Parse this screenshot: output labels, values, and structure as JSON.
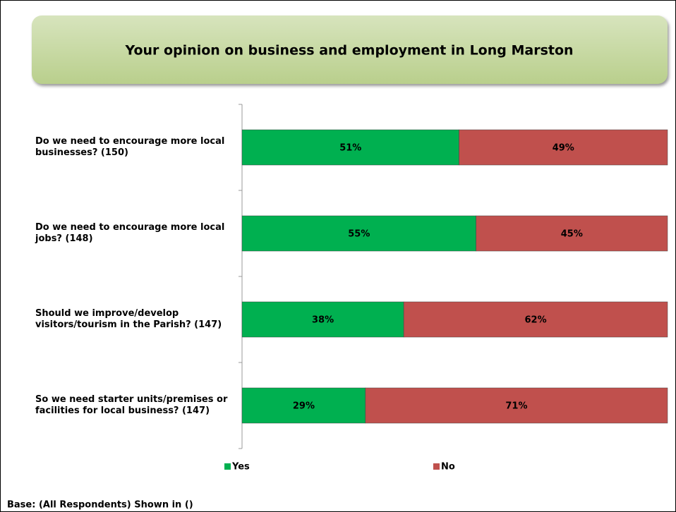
{
  "chart_data": {
    "type": "stacked_bar_horizontal",
    "title": "Your opinion on business and employment in Long Marston",
    "categories": [
      "Do we need to encourage more local businesses? (150)",
      "Do we need to encourage more local jobs? (148)",
      "Should we improve/develop visitors/tourism in the Parish? (147)",
      "So we need starter units/premises or facilities for local business? (147)"
    ],
    "series": [
      {
        "name": "Yes",
        "color": "#00b050",
        "values": [
          51,
          55,
          38,
          29
        ],
        "value_labels": [
          "51%",
          "55%",
          "38%",
          "29%"
        ]
      },
      {
        "name": "No",
        "color": "#c0504d",
        "values": [
          49,
          45,
          62,
          71
        ],
        "value_labels": [
          "49%",
          "45%",
          "62%",
          "71%"
        ]
      }
    ],
    "xlim": [
      0,
      100
    ],
    "legend": "bottom",
    "footnote": "Base: (All Respondents) Shown in ()"
  }
}
